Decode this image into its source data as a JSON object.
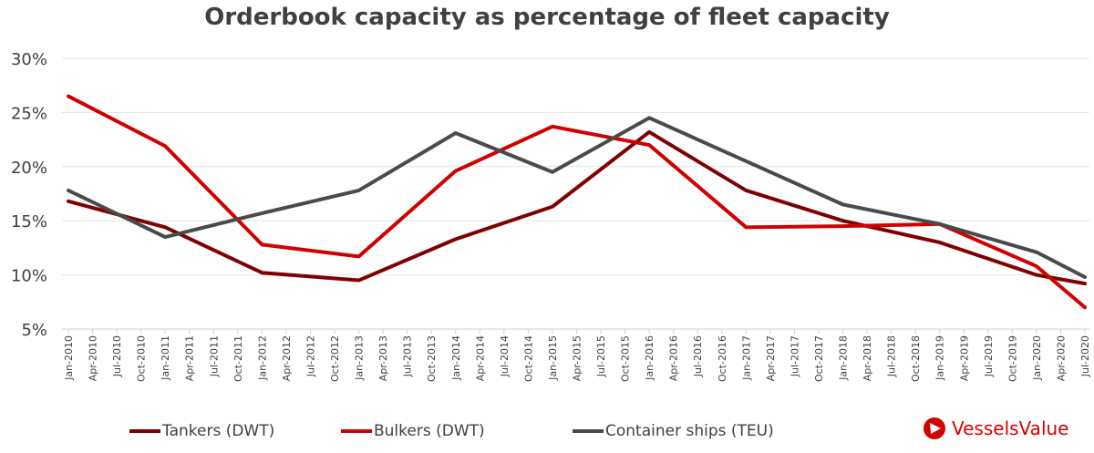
{
  "chart_data": {
    "type": "line",
    "title": "Orderbook capacity as percentage of fleet capacity",
    "xlabel": "",
    "ylabel": "",
    "ylim": [
      5,
      30
    ],
    "yticks": [
      "5%",
      "10%",
      "15%",
      "20%",
      "25%",
      "30%"
    ],
    "yticks_values": [
      5,
      10,
      15,
      20,
      25,
      30
    ],
    "grid": true,
    "legend_position": "bottom",
    "x_tick_labels": [
      "Jan-2010",
      "Apr-2010",
      "Jul-2010",
      "Oct-2010",
      "Jan-2011",
      "Apr-2011",
      "Jul-2011",
      "Oct-2011",
      "Jan-2012",
      "Apr-2012",
      "Jul-2012",
      "Oct-2012",
      "Jan-2013",
      "Apr-2013",
      "Jul-2013",
      "Oct-2013",
      "Jan-2014",
      "Apr-2014",
      "Jul-2014",
      "Oct-2014",
      "Jan-2015",
      "Apr-2015",
      "Jul-2015",
      "Oct-2015",
      "Jan-2016",
      "Apr-2016",
      "Jul-2016",
      "Oct-2016",
      "Jan-2017",
      "Apr-2017",
      "Jul-2017",
      "Oct-2017",
      "Jan-2018",
      "Apr-2018",
      "Jul-2018",
      "Oct-2018",
      "Jan-2019",
      "Apr-2019",
      "Jul-2019",
      "Oct-2019",
      "Jan-2020",
      "Apr-2020",
      "Jul-2020"
    ],
    "x_points_quarter_index": [
      0,
      4,
      8,
      12,
      16,
      20,
      24,
      28,
      32,
      36,
      40,
      42
    ],
    "series": [
      {
        "name": "Tankers (DWT)",
        "color": "#7f0000",
        "values": [
          16.8,
          14.4,
          10.2,
          9.5,
          13.3,
          16.3,
          23.2,
          17.8,
          15.0,
          13.0,
          10.0,
          9.2
        ]
      },
      {
        "name": "Bulkers (DWT)",
        "color": "#d00000",
        "values": [
          26.5,
          21.9,
          12.8,
          11.7,
          19.6,
          23.7,
          22.0,
          14.4,
          14.5,
          14.7,
          10.8,
          7.0
        ]
      },
      {
        "name": "Container ships (TEU)",
        "color": "#4a4a4a",
        "values": [
          17.8,
          13.5,
          15.7,
          17.8,
          23.1,
          19.5,
          24.5,
          20.5,
          16.5,
          14.7,
          12.1,
          9.8
        ]
      }
    ]
  },
  "brand": {
    "name": "VesselsValue",
    "color": "#d40000"
  }
}
